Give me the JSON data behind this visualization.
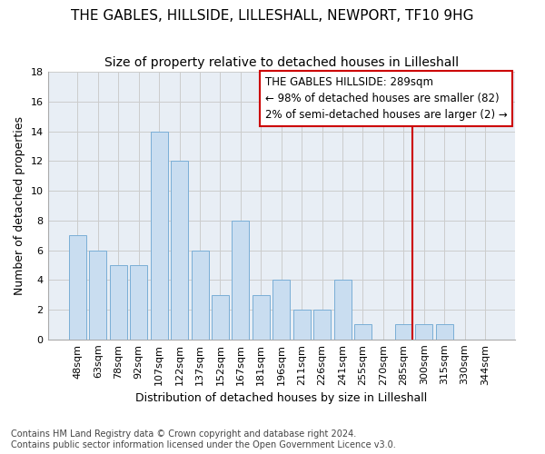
{
  "title_line1": "THE GABLES, HILLSIDE, LILLESHALL, NEWPORT, TF10 9HG",
  "title_line2": "Size of property relative to detached houses in Lilleshall",
  "xlabel": "Distribution of detached houses by size in Lilleshall",
  "ylabel": "Number of detached properties",
  "categories": [
    "48sqm",
    "63sqm",
    "78sqm",
    "92sqm",
    "107sqm",
    "122sqm",
    "137sqm",
    "152sqm",
    "167sqm",
    "181sqm",
    "196sqm",
    "211sqm",
    "226sqm",
    "241sqm",
    "255sqm",
    "270sqm",
    "285sqm",
    "300sqm",
    "315sqm",
    "330sqm",
    "344sqm"
  ],
  "values": [
    7,
    6,
    5,
    5,
    14,
    12,
    6,
    3,
    8,
    3,
    4,
    2,
    2,
    4,
    1,
    0,
    1,
    1,
    1,
    0,
    0
  ],
  "bar_color": "#c9ddf0",
  "bar_edge_color": "#7aaed6",
  "grid_color": "#cccccc",
  "plot_bg_color": "#e8eef5",
  "vline_color": "#cc0000",
  "vline_x": 16.42,
  "annotation_text": "THE GABLES HILLSIDE: 289sqm\n← 98% of detached houses are smaller (82)\n2% of semi-detached houses are larger (2) →",
  "annotation_box_edgecolor": "#cc0000",
  "ylim": [
    0,
    18
  ],
  "yticks": [
    0,
    2,
    4,
    6,
    8,
    10,
    12,
    14,
    16,
    18
  ],
  "footer": "Contains HM Land Registry data © Crown copyright and database right 2024.\nContains public sector information licensed under the Open Government Licence v3.0.",
  "bg_color": "#ffffff",
  "title1_fontsize": 11,
  "title2_fontsize": 10,
  "xlabel_fontsize": 9,
  "ylabel_fontsize": 9,
  "tick_fontsize": 8,
  "footer_fontsize": 7,
  "annot_fontsize": 8.5
}
